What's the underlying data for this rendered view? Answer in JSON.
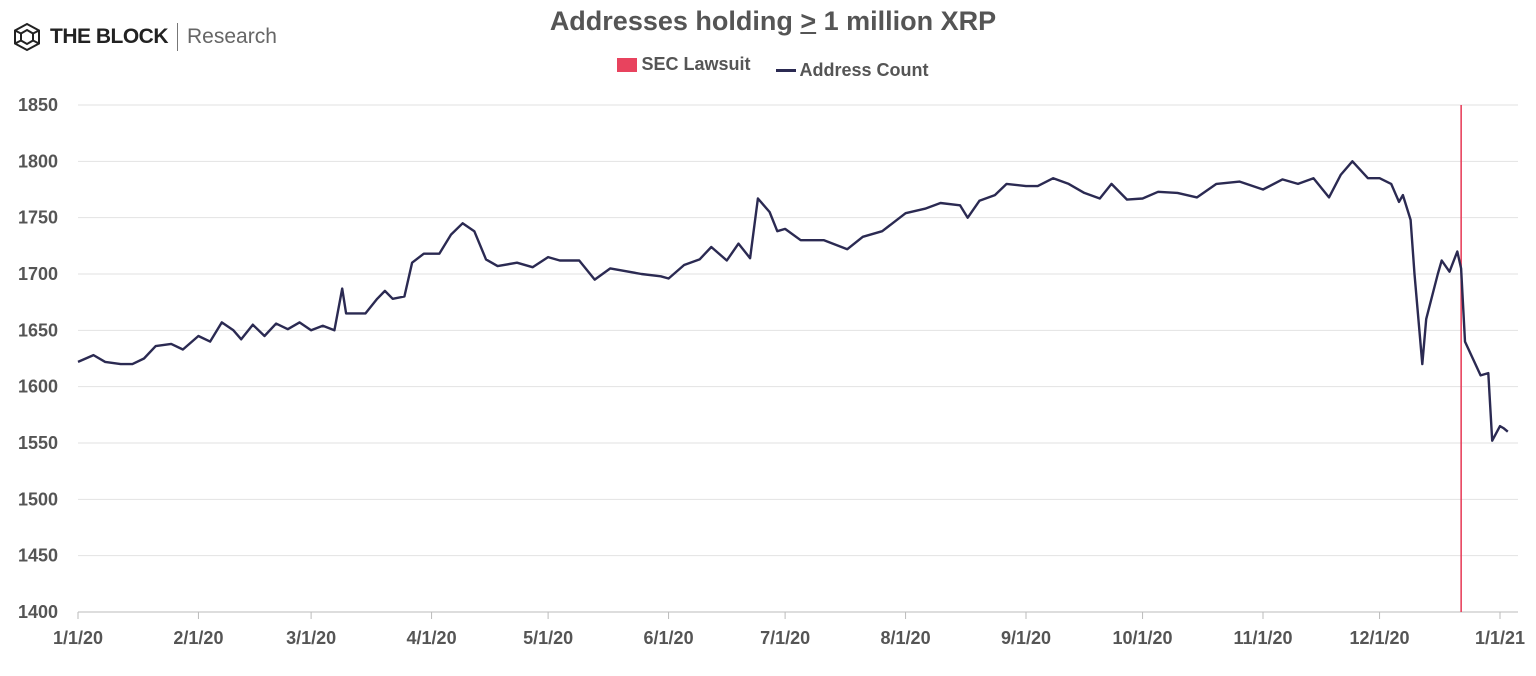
{
  "logo": {
    "brand": "THE BLOCK",
    "sub": "Research",
    "icon": "cube-icon"
  },
  "colors": {
    "line": "#2b2a52",
    "lawsuit": "#e8435e",
    "grid": "#e2e2e2"
  },
  "chart_data": {
    "type": "line",
    "title": "Addresses holding ≥ 1 million XRP",
    "title_parts": {
      "before": "Addresses holding ",
      "underlined": ">",
      "after": " 1 million XRP"
    },
    "legend": [
      {
        "name": "SEC Lawsuit",
        "kind": "marker"
      },
      {
        "name": "Address Count",
        "kind": "line"
      }
    ],
    "legend_placement": "top-center",
    "ylim": [
      1400,
      1850
    ],
    "yticks": [
      1400,
      1450,
      1500,
      1550,
      1600,
      1650,
      1700,
      1750,
      1800,
      1850
    ],
    "xlim": [
      "2020-01-01",
      "2021-01-03"
    ],
    "xticks": [
      [
        "2020-01-01",
        "1/1/20"
      ],
      [
        "2020-02-01",
        "2/1/20"
      ],
      [
        "2020-03-01",
        "3/1/20"
      ],
      [
        "2020-04-01",
        "4/1/20"
      ],
      [
        "2020-05-01",
        "5/1/20"
      ],
      [
        "2020-06-01",
        "6/1/20"
      ],
      [
        "2020-07-01",
        "7/1/20"
      ],
      [
        "2020-08-01",
        "8/1/20"
      ],
      [
        "2020-09-01",
        "9/1/20"
      ],
      [
        "2020-10-01",
        "10/1/20"
      ],
      [
        "2020-11-01",
        "11/1/20"
      ],
      [
        "2020-12-01",
        "12/1/20"
      ],
      [
        "2021-01-01",
        "1/1/21"
      ]
    ],
    "grid": true,
    "markers": [
      {
        "name": "SEC Lawsuit",
        "date": "2020-12-22"
      }
    ],
    "series": [
      {
        "name": "Address Count",
        "points": [
          [
            "2020-01-01",
            1622
          ],
          [
            "2020-01-05",
            1628
          ],
          [
            "2020-01-08",
            1622
          ],
          [
            "2020-01-12",
            1620
          ],
          [
            "2020-01-15",
            1620
          ],
          [
            "2020-01-18",
            1625
          ],
          [
            "2020-01-21",
            1636
          ],
          [
            "2020-01-25",
            1638
          ],
          [
            "2020-01-28",
            1633
          ],
          [
            "2020-02-01",
            1645
          ],
          [
            "2020-02-04",
            1640
          ],
          [
            "2020-02-07",
            1657
          ],
          [
            "2020-02-10",
            1650
          ],
          [
            "2020-02-12",
            1642
          ],
          [
            "2020-02-15",
            1655
          ],
          [
            "2020-02-18",
            1645
          ],
          [
            "2020-02-21",
            1656
          ],
          [
            "2020-02-24",
            1651
          ],
          [
            "2020-02-27",
            1657
          ],
          [
            "2020-03-01",
            1650
          ],
          [
            "2020-03-04",
            1654
          ],
          [
            "2020-03-07",
            1650
          ],
          [
            "2020-03-09",
            1687
          ],
          [
            "2020-03-10",
            1665
          ],
          [
            "2020-03-15",
            1665
          ],
          [
            "2020-03-18",
            1678
          ],
          [
            "2020-03-20",
            1685
          ],
          [
            "2020-03-22",
            1678
          ],
          [
            "2020-03-25",
            1680
          ],
          [
            "2020-03-27",
            1710
          ],
          [
            "2020-03-30",
            1718
          ],
          [
            "2020-04-03",
            1718
          ],
          [
            "2020-04-06",
            1735
          ],
          [
            "2020-04-09",
            1745
          ],
          [
            "2020-04-12",
            1738
          ],
          [
            "2020-04-15",
            1713
          ],
          [
            "2020-04-18",
            1707
          ],
          [
            "2020-04-23",
            1710
          ],
          [
            "2020-04-27",
            1706
          ],
          [
            "2020-05-01",
            1715
          ],
          [
            "2020-05-04",
            1712
          ],
          [
            "2020-05-09",
            1712
          ],
          [
            "2020-05-13",
            1695
          ],
          [
            "2020-05-17",
            1705
          ],
          [
            "2020-05-25",
            1700
          ],
          [
            "2020-05-30",
            1698
          ],
          [
            "2020-06-01",
            1696
          ],
          [
            "2020-06-05",
            1708
          ],
          [
            "2020-06-09",
            1713
          ],
          [
            "2020-06-12",
            1724
          ],
          [
            "2020-06-16",
            1712
          ],
          [
            "2020-06-19",
            1727
          ],
          [
            "2020-06-22",
            1714
          ],
          [
            "2020-06-24",
            1767
          ],
          [
            "2020-06-27",
            1755
          ],
          [
            "2020-06-29",
            1738
          ],
          [
            "2020-07-01",
            1740
          ],
          [
            "2020-07-05",
            1730
          ],
          [
            "2020-07-11",
            1730
          ],
          [
            "2020-07-17",
            1722
          ],
          [
            "2020-07-21",
            1733
          ],
          [
            "2020-07-26",
            1738
          ],
          [
            "2020-08-01",
            1754
          ],
          [
            "2020-08-06",
            1758
          ],
          [
            "2020-08-10",
            1763
          ],
          [
            "2020-08-15",
            1761
          ],
          [
            "2020-08-17",
            1750
          ],
          [
            "2020-08-20",
            1765
          ],
          [
            "2020-08-24",
            1770
          ],
          [
            "2020-08-27",
            1780
          ],
          [
            "2020-09-01",
            1778
          ],
          [
            "2020-09-04",
            1778
          ],
          [
            "2020-09-08",
            1785
          ],
          [
            "2020-09-12",
            1780
          ],
          [
            "2020-09-16",
            1772
          ],
          [
            "2020-09-20",
            1767
          ],
          [
            "2020-09-23",
            1780
          ],
          [
            "2020-09-27",
            1766
          ],
          [
            "2020-10-01",
            1767
          ],
          [
            "2020-10-05",
            1773
          ],
          [
            "2020-10-10",
            1772
          ],
          [
            "2020-10-15",
            1768
          ],
          [
            "2020-10-20",
            1780
          ],
          [
            "2020-10-26",
            1782
          ],
          [
            "2020-11-01",
            1775
          ],
          [
            "2020-11-06",
            1784
          ],
          [
            "2020-11-10",
            1780
          ],
          [
            "2020-11-14",
            1785
          ],
          [
            "2020-11-18",
            1768
          ],
          [
            "2020-11-21",
            1788
          ],
          [
            "2020-11-24",
            1800
          ],
          [
            "2020-11-28",
            1785
          ],
          [
            "2020-12-01",
            1785
          ],
          [
            "2020-12-04",
            1780
          ],
          [
            "2020-12-06",
            1764
          ],
          [
            "2020-12-07",
            1770
          ],
          [
            "2020-12-09",
            1748
          ],
          [
            "2020-12-10",
            1700
          ],
          [
            "2020-12-12",
            1620
          ],
          [
            "2020-12-13",
            1660
          ],
          [
            "2020-12-16",
            1700
          ],
          [
            "2020-12-17",
            1712
          ],
          [
            "2020-12-19",
            1702
          ],
          [
            "2020-12-21",
            1720
          ],
          [
            "2020-12-22",
            1705
          ],
          [
            "2020-12-23",
            1640
          ],
          [
            "2020-12-25",
            1625
          ],
          [
            "2020-12-27",
            1610
          ],
          [
            "2020-12-29",
            1612
          ],
          [
            "2020-12-30",
            1552
          ],
          [
            "2021-01-01",
            1565
          ],
          [
            "2021-01-02",
            1563
          ],
          [
            "2021-01-03",
            1560
          ]
        ]
      }
    ]
  }
}
